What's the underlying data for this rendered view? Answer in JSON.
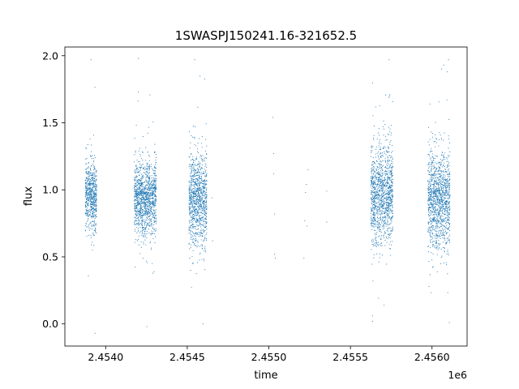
{
  "chart_data": {
    "type": "scatter",
    "title": "1SWASPJ150241.16-321652.5",
    "xlabel": "time",
    "ylabel": "flux",
    "x_offset_label": "1e6",
    "xlim": [
      2453750,
      2456215
    ],
    "ylim": [
      -0.165,
      2.065
    ],
    "xticks": [
      2454000,
      2454500,
      2455000,
      2455500,
      2456000
    ],
    "xtick_labels": [
      "2.4540",
      "2.4545",
      "2.4550",
      "2.4555",
      "2.4560"
    ],
    "yticks": [
      0.0,
      0.5,
      1.0,
      1.5,
      2.0
    ],
    "ytick_labels": [
      "0.0",
      "0.5",
      "1.0",
      "1.5",
      "2.0"
    ],
    "grid": false,
    "marker_color": "#1f77b4",
    "clusters": [
      {
        "x_start": 2453875,
        "x_end": 2453945,
        "y_center": 0.95,
        "y_spread": 0.12,
        "y_min": -0.07,
        "y_max": 1.97
      },
      {
        "x_start": 2454175,
        "x_end": 2454310,
        "y_center": 0.93,
        "y_spread": 0.14,
        "y_min": -0.02,
        "y_max": 1.98
      },
      {
        "x_start": 2454510,
        "x_end": 2454620,
        "y_center": 0.93,
        "y_spread": 0.17,
        "y_min": 0.0,
        "y_max": 1.97
      },
      {
        "x_start": 2455625,
        "x_end": 2455760,
        "y_center": 0.97,
        "y_spread": 0.18,
        "y_min": 0.02,
        "y_max": 1.97
      },
      {
        "x_start": 2455975,
        "x_end": 2456110,
        "y_center": 0.93,
        "y_spread": 0.18,
        "y_min": 0.01,
        "y_max": 1.97
      }
    ],
    "sparse_points": [
      {
        "x": 2454650,
        "y": 0.94
      },
      {
        "x": 2454655,
        "y": 0.62
      },
      {
        "x": 2455025,
        "y": 1.54
      },
      {
        "x": 2455030,
        "y": 1.27
      },
      {
        "x": 2455030,
        "y": 1.12
      },
      {
        "x": 2455035,
        "y": 0.82
      },
      {
        "x": 2455035,
        "y": 0.52
      },
      {
        "x": 2455040,
        "y": 0.49
      },
      {
        "x": 2455215,
        "y": 0.49
      },
      {
        "x": 2455220,
        "y": 0.77
      },
      {
        "x": 2455225,
        "y": 0.98
      },
      {
        "x": 2455230,
        "y": 1.04
      },
      {
        "x": 2455235,
        "y": 0.73
      },
      {
        "x": 2455240,
        "y": 1.15
      },
      {
        "x": 2455355,
        "y": 0.99
      },
      {
        "x": 2455355,
        "y": 0.76
      }
    ]
  }
}
